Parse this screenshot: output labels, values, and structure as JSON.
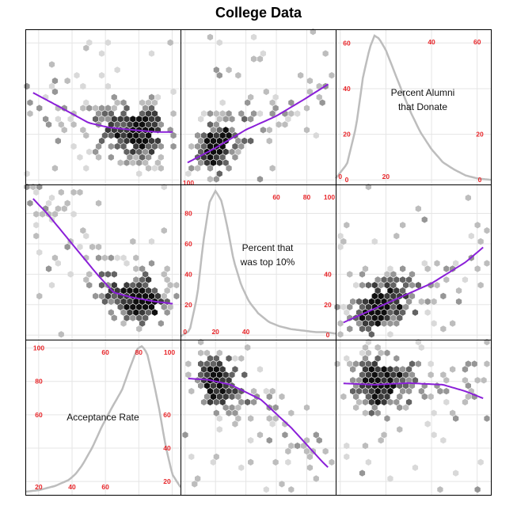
{
  "title": "College Data",
  "colors": {
    "trend": "#8a1fd8",
    "density": "#bdbdbd",
    "tick_labels": "#e8262a",
    "grid": "#e5e5e5",
    "hex_shades": [
      "#d9d9d9",
      "#bdbdbd",
      "#969696",
      "#636363",
      "#3a3a3a",
      "#0f0f0f"
    ]
  },
  "chart_data": {
    "type": "scatter",
    "subtype": "scatterplot-matrix (hexbin lower/upper, density diagonal)",
    "variables": [
      {
        "key": "perc_alumni",
        "label": "Percent Alumni that Donate",
        "label_lines": [
          "Percent Alumni",
          "that Donate"
        ],
        "range": [
          -2,
          66
        ],
        "ticks": [
          0,
          20,
          40,
          60
        ]
      },
      {
        "key": "top10perc",
        "label": "Percent that was top 10%",
        "label_lines": [
          "Percent that",
          "was top 10%"
        ],
        "range": [
          -3,
          99
        ],
        "ticks": [
          0,
          20,
          40,
          60,
          80,
          100
        ]
      },
      {
        "key": "accept_rate",
        "label": "Acceptance Rate",
        "label_lines": [
          "Acceptance Rate"
        ],
        "range": [
          12,
          105
        ],
        "ticks": [
          20,
          40,
          60,
          80,
          100
        ]
      }
    ],
    "tick_labels": {
      "perc_alumni": {
        "left": [
          "0",
          "20",
          "40",
          "60"
        ],
        "top": [
          "40",
          "60"
        ],
        "bottom": [
          "0",
          "20"
        ],
        "right": [
          "0",
          "20"
        ]
      },
      "top10perc": {
        "left": [
          "20",
          "40",
          "60",
          "80",
          "100"
        ],
        "top": [
          "60",
          "80",
          "100"
        ],
        "bottom": [
          "0",
          "20",
          "40"
        ],
        "right": [
          "0",
          "20",
          "40"
        ]
      },
      "accept_rate": {
        "left": [
          "60",
          "80",
          "100"
        ],
        "top": [
          "60",
          "80",
          "100"
        ],
        "bottom": [
          "20",
          "40",
          "60"
        ],
        "right": [
          "20",
          "40",
          "60"
        ]
      }
    },
    "densities": {
      "perc_alumni": {
        "x": [
          -2,
          3,
          7,
          10,
          13,
          15,
          17,
          20,
          23,
          27,
          31,
          35,
          40,
          45,
          50,
          55,
          60,
          66
        ],
        "y": [
          0.02,
          0.12,
          0.38,
          0.72,
          0.92,
          1.0,
          0.98,
          0.9,
          0.78,
          0.62,
          0.47,
          0.34,
          0.22,
          0.13,
          0.08,
          0.04,
          0.02,
          0.01
        ]
      },
      "top10perc": {
        "x": [
          -3,
          3,
          8,
          12,
          16,
          20,
          24,
          28,
          32,
          37,
          42,
          48,
          55,
          62,
          70,
          78,
          86,
          92,
          99
        ],
        "y": [
          0.0,
          0.04,
          0.28,
          0.65,
          0.92,
          1.0,
          0.93,
          0.74,
          0.52,
          0.35,
          0.24,
          0.16,
          0.1,
          0.07,
          0.05,
          0.04,
          0.03,
          0.03,
          0.02
        ]
      },
      "accept_rate": {
        "x": [
          12,
          20,
          30,
          38,
          42,
          46,
          52,
          58,
          64,
          70,
          75,
          79,
          82,
          85,
          88,
          92,
          96,
          100,
          105
        ],
        "y": [
          0.0,
          0.01,
          0.04,
          0.08,
          0.12,
          0.18,
          0.3,
          0.45,
          0.58,
          0.7,
          0.86,
          0.98,
          1.0,
          0.95,
          0.8,
          0.58,
          0.32,
          0.12,
          0.03
        ]
      }
    },
    "trends": {
      "perc_alumni_vs_top10perc": {
        "x": [
          0,
          20,
          40,
          60,
          80,
          99
        ],
        "y": [
          7,
          14,
          22,
          28,
          36,
          44
        ]
      },
      "perc_alumni_vs_accept_rate": {
        "x": [
          12,
          30,
          50,
          62,
          75,
          90,
          105
        ],
        "y": [
          40,
          33,
          25,
          23,
          22,
          21,
          21
        ]
      },
      "top10perc_vs_perc_alumni": {
        "x": [
          -2,
          10,
          25,
          40,
          55,
          66
        ],
        "y": [
          6,
          14,
          24,
          34,
          48,
          62
        ]
      },
      "top10perc_vs_accept_rate": {
        "x": [
          12,
          25,
          40,
          55,
          65,
          75,
          90,
          105
        ],
        "y": [
          95,
          80,
          60,
          40,
          28,
          25,
          22,
          20
        ]
      },
      "accept_rate_vs_perc_alumni": {
        "x": [
          -2,
          15,
          30,
          45,
          55,
          66
        ],
        "y": [
          79,
          78,
          79,
          78,
          74,
          68
        ]
      },
      "accept_rate_vs_top10perc": {
        "x": [
          -3,
          15,
          30,
          50,
          70,
          90,
          99
        ],
        "y": [
          82,
          81,
          78,
          69,
          52,
          32,
          24
        ]
      }
    },
    "grid": true,
    "legend": "none"
  }
}
